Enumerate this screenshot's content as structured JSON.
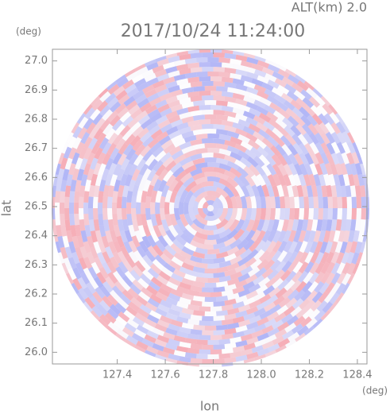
{
  "chart_data": {
    "type": "radar-ppi",
    "title": "2017/10/24 11:24:00",
    "subtitle": "ALT(km) 2.0",
    "x_label": "lon",
    "y_label": "lat",
    "x_unit": "(deg)",
    "y_unit": "(deg)",
    "xlim": [
      127.13,
      128.44
    ],
    "ylim": [
      25.96,
      27.04
    ],
    "xticks": [
      127.4,
      127.6,
      127.8,
      {
        "value": 128,
        "label": "128.0"
      },
      128.2,
      128.4
    ],
    "yticks": [
      {
        "value": 26,
        "label": "26.0"
      },
      26.1,
      26.2,
      26.3,
      26.4,
      26.5,
      26.6,
      26.7,
      26.8,
      26.9,
      {
        "value": 27,
        "label": "27.0"
      }
    ]
  }
}
